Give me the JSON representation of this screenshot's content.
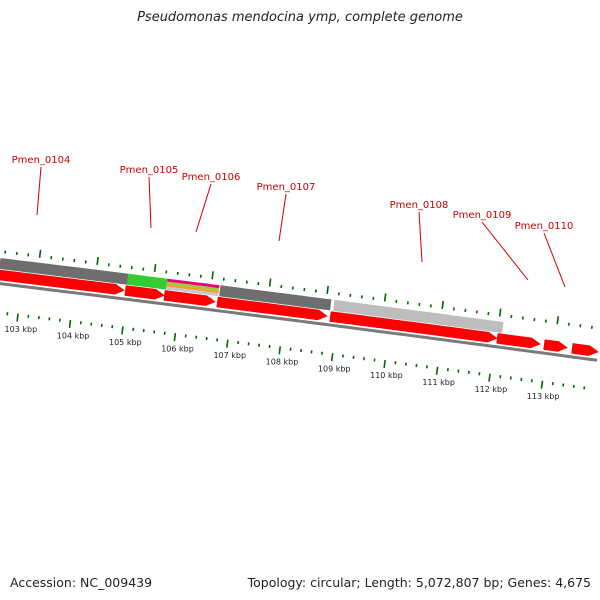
{
  "title": "Pseudomonas mendocina ymp, complete genome",
  "footer": {
    "accession": "Accession: NC_009439",
    "summary": "Topology: circular; Length: 5,072,807 bp; Genes: 4,675"
  },
  "colors": {
    "gene_label": "#cc0000",
    "gene_arrow": "#ff0000",
    "tick": "#006600",
    "backbone": "#7a7a7a"
  },
  "genes": [
    {
      "label": "Pmen_0104"
    },
    {
      "label": "Pmen_0105"
    },
    {
      "label": "Pmen_0106"
    },
    {
      "label": "Pmen_0107"
    },
    {
      "label": "Pmen_0108"
    },
    {
      "label": "Pmen_0109"
    },
    {
      "label": "Pmen_0110"
    }
  ],
  "scale": {
    "labels": [
      "103 kbp",
      "104 kbp",
      "105 kbp",
      "106 kbp",
      "107 kbp",
      "108 kbp",
      "109 kbp",
      "110 kbp",
      "111 kbp",
      "112 kbp",
      "113 kbp"
    ]
  }
}
